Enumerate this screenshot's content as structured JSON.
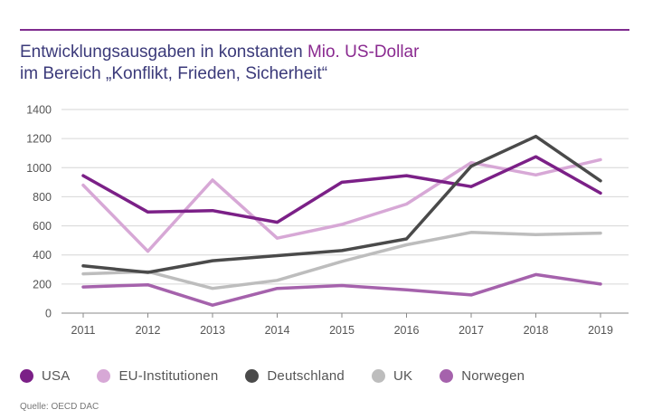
{
  "page": {
    "title_line1_prefix": "Entwicklungsausgaben in konstanten ",
    "title_line1_accent": "Mio. US-Dollar",
    "title_line2": "im Bereich „Konflikt, Frieden, Sicherheit“",
    "source": "Quelle: OECD DAC",
    "accent_color": "#7f2c8f"
  },
  "chart_data": {
    "type": "line",
    "title": "Entwicklungsausgaben in konstanten Mio. US-Dollar im Bereich „Konflikt, Frieden, Sicherheit“",
    "xlabel": "",
    "ylabel": "",
    "x": [
      "2011",
      "2012",
      "2013",
      "2014",
      "2015",
      "2016",
      "2017",
      "2018",
      "2019"
    ],
    "ylim": [
      0,
      1400
    ],
    "yticks": [
      0,
      200,
      400,
      600,
      800,
      1000,
      1200,
      1400
    ],
    "grid": true,
    "legend_position": "bottom",
    "series": [
      {
        "name": "USA",
        "color": "#7b2087",
        "values": [
          945,
          695,
          705,
          625,
          900,
          945,
          870,
          1075,
          825
        ]
      },
      {
        "name": "EU-Institutionen",
        "color": "#d7a8d6",
        "values": [
          880,
          425,
          915,
          515,
          610,
          750,
          1035,
          950,
          1055
        ]
      },
      {
        "name": "Deutschland",
        "color": "#4a4a4a",
        "values": [
          325,
          280,
          360,
          395,
          430,
          510,
          1010,
          1215,
          910
        ]
      },
      {
        "name": "UK",
        "color": "#bdbdbd",
        "values": [
          270,
          285,
          170,
          225,
          355,
          470,
          555,
          540,
          550
        ]
      },
      {
        "name": "Norwegen",
        "color": "#a562ac",
        "values": [
          180,
          195,
          55,
          170,
          190,
          160,
          125,
          265,
          200
        ]
      }
    ]
  }
}
